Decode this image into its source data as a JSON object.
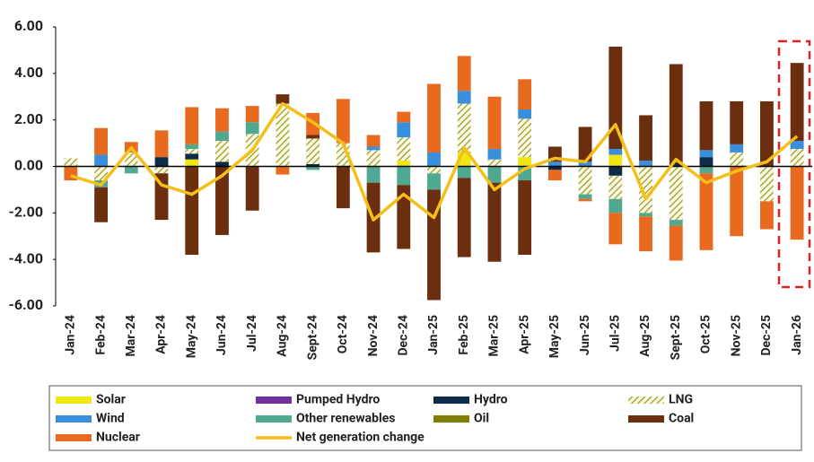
{
  "chart_data": {
    "type": "bar",
    "categories": [
      "Jan-24",
      "Feb-24",
      "Mar-24",
      "Apr-24",
      "May-24",
      "Jun-24",
      "Jul-24",
      "Aug-24",
      "Sept-24",
      "Oct-24",
      "Nov-24",
      "Dec-24",
      "Jan-25",
      "Feb-25",
      "Mar-25",
      "Apr-25",
      "May-25",
      "Jun-25",
      "Jul-25",
      "Aug-25",
      "Sept-25",
      "Oct-25",
      "Nov-25",
      "Dec-25",
      "Jan-26"
    ],
    "series": [
      {
        "name": "Solar",
        "color": "#f0e614",
        "values": [
          0,
          0,
          0,
          0,
          0.3,
          0,
          0,
          0,
          0,
          0,
          0,
          0.25,
          0,
          0.6,
          0,
          0.4,
          0,
          0,
          0.5,
          0,
          0,
          0,
          0,
          0,
          0
        ]
      },
      {
        "name": "Pumped Hydro",
        "color": "#7030a0",
        "values": [
          0,
          0,
          0,
          0,
          0,
          0,
          0,
          0,
          0,
          0,
          0,
          0,
          0,
          0,
          0,
          0,
          0,
          0,
          0,
          0,
          0,
          0,
          0,
          0,
          0
        ]
      },
      {
        "name": "Hydro",
        "color": "#0d2c4a",
        "values": [
          0,
          0,
          0,
          0.4,
          0.25,
          0.2,
          0,
          0,
          0.1,
          0,
          0,
          0,
          0,
          0,
          0,
          0,
          -0.15,
          0,
          -0.4,
          0,
          0.15,
          0.4,
          0,
          0,
          0
        ]
      },
      {
        "name": "LNG",
        "color": "#a8a83c",
        "pattern": "hatch",
        "values": [
          0.35,
          -0.6,
          0.6,
          -0.3,
          0.2,
          0.9,
          1.4,
          2.7,
          1.1,
          1.0,
          0.7,
          1.0,
          -0.3,
          2.1,
          0.3,
          1.65,
          0,
          -1.2,
          -1.0,
          -2.0,
          -2.3,
          0,
          0.6,
          -1.5,
          0.75
        ]
      },
      {
        "name": "Wind",
        "color": "#3a8fdc",
        "values": [
          0,
          0.5,
          0,
          0,
          0,
          0,
          0,
          0,
          0,
          0,
          0.15,
          0.65,
          0.6,
          0.55,
          0.45,
          0.4,
          0.2,
          0.2,
          0.25,
          0.25,
          0,
          0.3,
          0.35,
          0,
          0.35
        ]
      },
      {
        "name": "Other renewables",
        "color": "#4fa890",
        "values": [
          0,
          -0.3,
          -0.3,
          0,
          0.2,
          0.4,
          0.5,
          0,
          -0.15,
          0,
          -0.7,
          -0.8,
          -0.7,
          -0.5,
          -0.7,
          -0.6,
          0,
          -0.2,
          -0.6,
          -0.15,
          -0.25,
          -0.3,
          0,
          0,
          0
        ]
      },
      {
        "name": "Oil",
        "color": "#808000",
        "values": [
          0,
          0,
          0,
          0,
          0,
          0,
          0,
          0,
          0,
          0,
          0,
          0,
          0,
          0,
          0,
          0,
          0,
          0,
          0,
          0,
          0,
          0,
          0,
          0,
          0
        ]
      },
      {
        "name": "Coal",
        "color": "#6b2e0e",
        "values": [
          0,
          -1.5,
          0,
          -2.0,
          -3.8,
          -2.95,
          -1.9,
          0.4,
          0.15,
          -1.8,
          -3.0,
          -2.75,
          -4.75,
          -3.4,
          -3.4,
          -3.2,
          0.65,
          1.5,
          4.4,
          1.95,
          4.25,
          2.1,
          1.85,
          2.8,
          3.35
        ]
      },
      {
        "name": "Nuclear",
        "color": "#e86a1e",
        "values": [
          -0.6,
          1.15,
          0.45,
          1.15,
          1.6,
          1.0,
          0.7,
          -0.35,
          0.95,
          1.9,
          0.5,
          0.45,
          2.95,
          1.5,
          2.25,
          1.3,
          -0.45,
          -0.1,
          -1.35,
          -1.5,
          -1.5,
          -3.3,
          -3.0,
          -1.2,
          -3.15
        ]
      },
      {
        "name": "Net generation change",
        "color": "#f5bf1a",
        "type": "line",
        "values": [
          -0.4,
          -0.8,
          0.8,
          -0.8,
          -1.2,
          -0.4,
          0.7,
          2.7,
          1.9,
          1.0,
          -2.3,
          -1.2,
          -2.2,
          0.8,
          -1.0,
          -0.1,
          0.35,
          0.2,
          1.8,
          -1.4,
          0.3,
          -0.7,
          -0.2,
          0.2,
          1.3
        ]
      }
    ],
    "ylim": [
      -6,
      6
    ],
    "yticks": [
      {
        "value": -6,
        "label": "-6.00"
      },
      {
        "value": -4,
        "label": "-4.00"
      },
      {
        "value": -2,
        "label": "-2.00"
      },
      {
        "value": 0,
        "label": "0.00"
      },
      {
        "value": 2,
        "label": "2.00"
      },
      {
        "value": 4,
        "label": "4.00"
      },
      {
        "value": 6,
        "label": "6.00"
      }
    ],
    "grid": false
  }
}
